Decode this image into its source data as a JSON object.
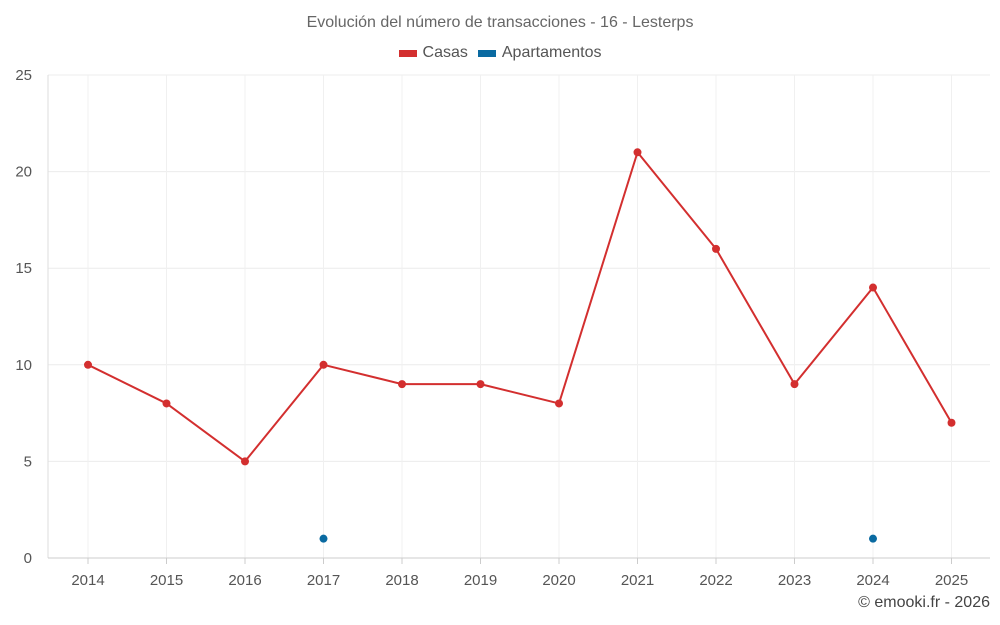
{
  "chart_data": {
    "type": "line",
    "title": "Evolución del número de transacciones - 16 - Lesterps",
    "categories": [
      "2014",
      "2015",
      "2016",
      "2017",
      "2018",
      "2019",
      "2020",
      "2021",
      "2022",
      "2023",
      "2024",
      "2025"
    ],
    "series": [
      {
        "name": "Casas",
        "color": "#d32f2f",
        "values": [
          10,
          8,
          5,
          10,
          9,
          9,
          8,
          21,
          16,
          9,
          14,
          7
        ]
      },
      {
        "name": "Apartamentos",
        "color": "#0a6aa1",
        "values": [
          null,
          null,
          null,
          1,
          null,
          null,
          null,
          null,
          null,
          null,
          1,
          null
        ]
      }
    ],
    "ylim": [
      0,
      25
    ],
    "yticks": [
      0,
      5,
      10,
      15,
      20,
      25
    ],
    "xlabel": "",
    "ylabel": "",
    "grid": true,
    "legend_position": "top-center"
  },
  "footer": {
    "copyright": "© emooki.fr - 2026"
  }
}
